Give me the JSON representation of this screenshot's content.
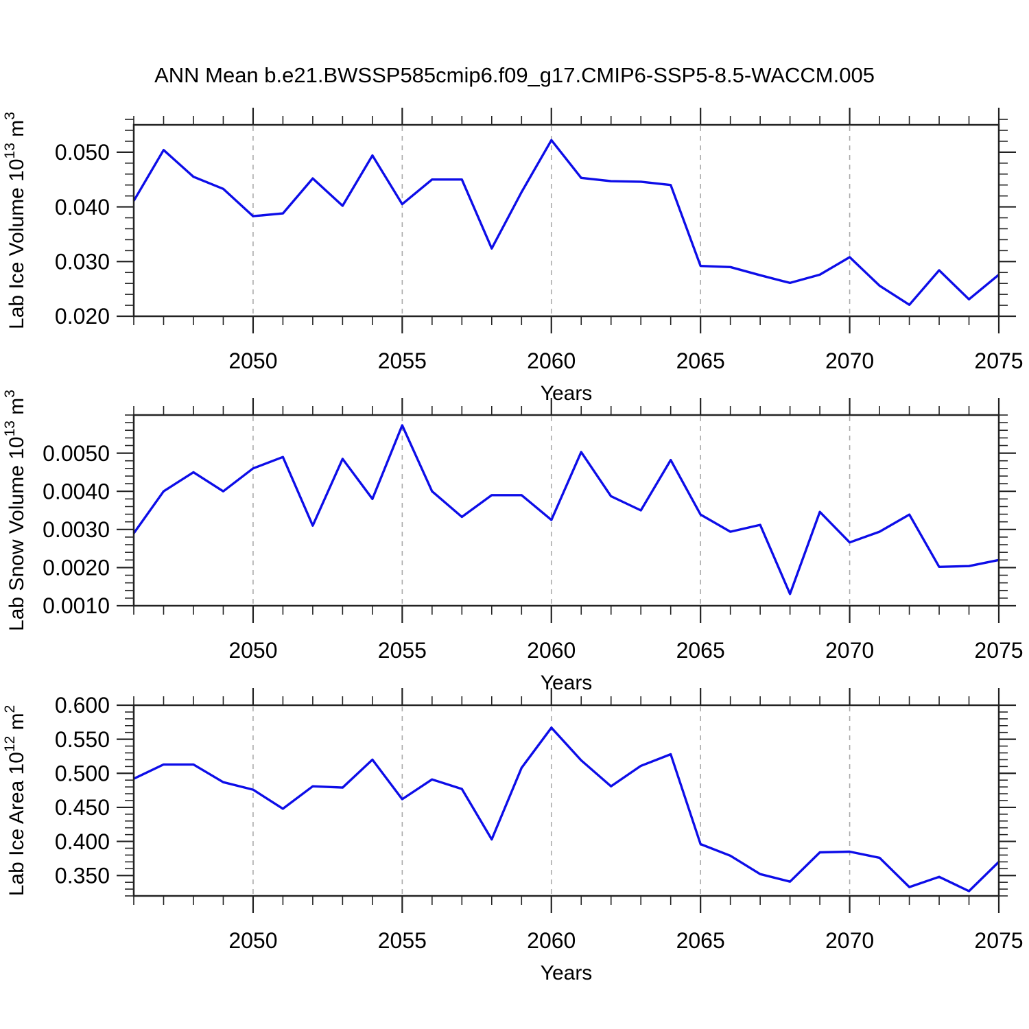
{
  "title": "ANN Mean b.e21.BWSSP585cmip6.f09_g17.CMIP6-SSP5-8.5-WACCM.005",
  "colors": {
    "line": "#0d0de8",
    "grid": "#aaaaaa",
    "axis": "#222222",
    "text": "#000000"
  },
  "chart_data": [
    {
      "type": "line",
      "name": "lab-ice-volume",
      "ylabel_parts": [
        {
          "text": "Lab Ice Volume 10",
          "sup": false
        },
        {
          "text": "13",
          "sup": true
        },
        {
          "text": " m",
          "sup": false
        },
        {
          "text": "3",
          "sup": true
        }
      ],
      "xlabel": "Years",
      "x": [
        2046,
        2047,
        2048,
        2049,
        2050,
        2051,
        2052,
        2053,
        2054,
        2055,
        2056,
        2057,
        2058,
        2059,
        2060,
        2061,
        2062,
        2063,
        2064,
        2065,
        2066,
        2067,
        2068,
        2069,
        2070,
        2071,
        2072,
        2073,
        2074,
        2075
      ],
      "values": [
        0.0411,
        0.0504,
        0.0455,
        0.0433,
        0.0383,
        0.0388,
        0.0452,
        0.0402,
        0.0494,
        0.0405,
        0.045,
        0.045,
        0.0324,
        0.0427,
        0.0522,
        0.0453,
        0.0447,
        0.0446,
        0.044,
        0.0292,
        0.029,
        0.0275,
        0.0261,
        0.0276,
        0.0308,
        0.0256,
        0.0221,
        0.0284,
        0.0231,
        0.0276
      ],
      "xlim": [
        2046,
        2075
      ],
      "ylim": [
        0.02,
        0.055
      ],
      "xtick_values": [
        2050,
        2055,
        2060,
        2065,
        2070,
        2075
      ],
      "xtick_labels": [
        "2050",
        "2055",
        "2060",
        "2065",
        "2070",
        "2075"
      ],
      "xminor_step": 1,
      "ytick_values": [
        0.02,
        0.03,
        0.04,
        0.05
      ],
      "ytick_labels": [
        "0.020",
        "0.030",
        "0.040",
        "0.050"
      ],
      "yminor_step": 0.002,
      "grid_x": [
        2050,
        2055,
        2060,
        2065,
        2070
      ],
      "grid_on": true,
      "legend": "none"
    },
    {
      "type": "line",
      "name": "lab-snow-volume",
      "ylabel_parts": [
        {
          "text": "Lab Snow Volume 10",
          "sup": false
        },
        {
          "text": "13",
          "sup": true
        },
        {
          "text": " m",
          "sup": false
        },
        {
          "text": "3",
          "sup": true
        }
      ],
      "xlabel": "Years",
      "x": [
        2046,
        2047,
        2048,
        2049,
        2050,
        2051,
        2052,
        2053,
        2054,
        2055,
        2056,
        2057,
        2058,
        2059,
        2060,
        2061,
        2062,
        2063,
        2064,
        2065,
        2066,
        2067,
        2068,
        2069,
        2070,
        2071,
        2072,
        2073,
        2074,
        2075
      ],
      "values": [
        0.0029,
        0.004,
        0.0045,
        0.004,
        0.0046,
        0.0049,
        0.0031,
        0.00485,
        0.0038,
        0.00573,
        0.004,
        0.00333,
        0.0039,
        0.0039,
        0.00325,
        0.00503,
        0.00387,
        0.0035,
        0.00482,
        0.00339,
        0.00294,
        0.00312,
        0.00131,
        0.00346,
        0.00266,
        0.00294,
        0.00339,
        0.00202,
        0.00204,
        0.0022
      ],
      "xlim": [
        2046,
        2075
      ],
      "ylim": [
        0.001,
        0.006
      ],
      "xtick_values": [
        2050,
        2055,
        2060,
        2065,
        2070,
        2075
      ],
      "xtick_labels": [
        "2050",
        "2055",
        "2060",
        "2065",
        "2070",
        "2075"
      ],
      "xminor_step": 1,
      "ytick_values": [
        0.001,
        0.002,
        0.003,
        0.004,
        0.005
      ],
      "ytick_labels": [
        "0.0010",
        "0.0020",
        "0.0030",
        "0.0040",
        "0.0050"
      ],
      "yminor_step": 0.0002,
      "grid_x": [
        2050,
        2055,
        2060,
        2065,
        2070
      ],
      "grid_on": true,
      "legend": "none"
    },
    {
      "type": "line",
      "name": "lab-ice-area",
      "ylabel_parts": [
        {
          "text": "Lab Ice Area 10",
          "sup": false
        },
        {
          "text": "12",
          "sup": true
        },
        {
          "text": " m",
          "sup": false
        },
        {
          "text": "2",
          "sup": true
        }
      ],
      "xlabel": "Years",
      "x": [
        2046,
        2047,
        2048,
        2049,
        2050,
        2051,
        2052,
        2053,
        2054,
        2055,
        2056,
        2057,
        2058,
        2059,
        2060,
        2061,
        2062,
        2063,
        2064,
        2065,
        2066,
        2067,
        2068,
        2069,
        2070,
        2071,
        2072,
        2073,
        2074,
        2075
      ],
      "values": [
        0.492,
        0.513,
        0.513,
        0.487,
        0.476,
        0.448,
        0.481,
        0.479,
        0.52,
        0.462,
        0.491,
        0.477,
        0.403,
        0.508,
        0.567,
        0.519,
        0.481,
        0.511,
        0.528,
        0.396,
        0.379,
        0.352,
        0.341,
        0.384,
        0.385,
        0.376,
        0.333,
        0.348,
        0.327,
        0.37
      ],
      "xlim": [
        2046,
        2075
      ],
      "ylim": [
        0.32,
        0.6
      ],
      "xtick_values": [
        2050,
        2055,
        2060,
        2065,
        2070,
        2075
      ],
      "xtick_labels": [
        "2050",
        "2055",
        "2060",
        "2065",
        "2070",
        "2075"
      ],
      "xminor_step": 1,
      "ytick_values": [
        0.35,
        0.4,
        0.45,
        0.5,
        0.55,
        0.6
      ],
      "ytick_labels": [
        "0.350",
        "0.400",
        "0.450",
        "0.500",
        "0.550",
        "0.600"
      ],
      "yminor_step": 0.01,
      "grid_x": [
        2050,
        2055,
        2060,
        2065,
        2070
      ],
      "grid_on": true,
      "legend": "none"
    }
  ]
}
